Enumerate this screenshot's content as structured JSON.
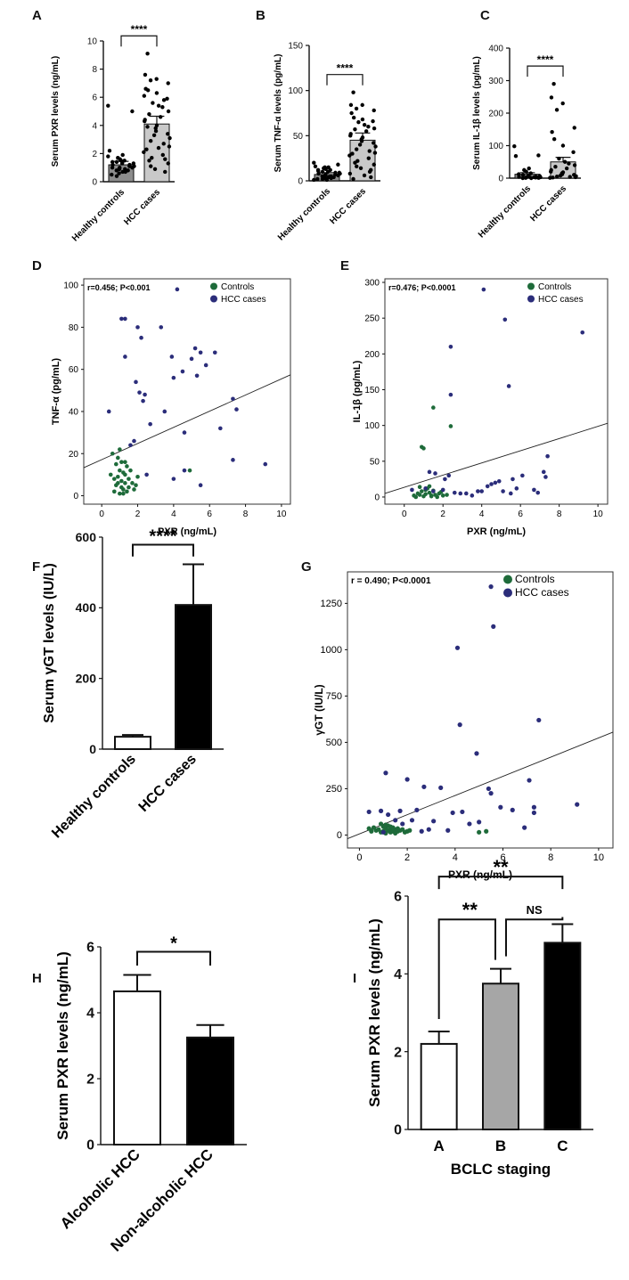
{
  "colors": {
    "control": "#1e6b3a",
    "hcc": "#2b2d7a",
    "black": "#111111",
    "grey_bar_light": "#c9c9c9",
    "grey_bar_dark": "#8c8c8c",
    "white_bar": "#ffffff",
    "black_bar": "#000000",
    "grey_b": "#a6a6a6"
  },
  "chart_data": [
    {
      "id": "A",
      "type": "bar",
      "panel_label": "A",
      "categories": [
        "Healthy controls",
        "HCC cases"
      ],
      "values": [
        1.2,
        4.1
      ],
      "errors": [
        0.25,
        0.55
      ],
      "ylabel": "Serum PXR levels (ng/mL)",
      "ylim": [
        0,
        10
      ],
      "yticks": [
        "0",
        "2",
        "4",
        "6",
        "8",
        "10"
      ],
      "significance": "****",
      "points": [
        [
          5.4,
          5.0,
          2.2,
          1.9,
          1.7,
          1.6,
          1.5,
          1.4,
          1.4,
          1.3,
          1.3,
          1.2,
          1.2,
          1.1,
          1.1,
          1.0,
          1.0,
          0.9,
          0.9,
          0.8,
          0.8,
          0.7,
          0.7,
          0.6,
          0.5,
          0.4,
          1.5,
          1.8,
          1.0,
          0.9
        ],
        [
          9.1,
          7.6,
          7.3,
          7.2,
          7.0,
          6.6,
          6.5,
          6.3,
          5.9,
          5.6,
          5.4,
          5.3,
          5.0,
          4.8,
          4.6,
          4.4,
          4.3,
          4.0,
          3.8,
          3.6,
          3.4,
          3.3,
          3.1,
          2.9,
          2.7,
          2.5,
          2.3,
          2.1,
          1.9,
          1.7,
          1.5,
          1.3,
          1.1,
          0.9,
          0.7,
          5.8,
          6.1,
          2.4,
          1.6,
          3.9
        ]
      ]
    },
    {
      "id": "B",
      "type": "bar",
      "panel_label": "B",
      "categories": [
        "Healthy controls",
        "HCC cases"
      ],
      "values": [
        7,
        45
      ],
      "errors": [
        2,
        8
      ],
      "ylabel": "Serum TNF-α levels (pg/mL)",
      "ylim": [
        0,
        150
      ],
      "yticks": [
        "0",
        "50",
        "100",
        "150"
      ],
      "significance": "****",
      "points": [
        [
          20,
          18,
          16,
          15,
          14,
          13,
          12,
          11,
          10,
          10,
          9,
          9,
          8,
          8,
          7,
          7,
          6,
          6,
          5,
          5,
          4,
          4,
          3,
          3,
          2,
          2,
          1,
          1,
          12,
          15
        ],
        [
          98,
          84,
          84,
          80,
          78,
          75,
          70,
          68,
          66,
          65,
          62,
          60,
          58,
          57,
          55,
          52,
          50,
          48,
          46,
          44,
          42,
          40,
          38,
          35,
          33,
          31,
          30,
          28,
          25,
          22,
          20,
          18,
          16,
          14,
          12,
          10,
          8,
          6,
          4,
          2
        ]
      ]
    },
    {
      "id": "C",
      "type": "bar",
      "panel_label": "C",
      "categories": [
        "Healthy controls",
        "HCC cases"
      ],
      "values": [
        12,
        50
      ],
      "errors": [
        5,
        14
      ],
      "ylabel": "Serum IL-1β levels (pg/mL)",
      "ylim": [
        0,
        400
      ],
      "yticks": [
        "0",
        "100",
        "200",
        "300",
        "400"
      ],
      "significance": "****",
      "points": [
        [
          98,
          70,
          68,
          30,
          25,
          20,
          15,
          12,
          10,
          8,
          6,
          5,
          4,
          3,
          2,
          2,
          1,
          1,
          0,
          0,
          3,
          5
        ],
        [
          290,
          248,
          230,
          210,
          155,
          142,
          120,
          100,
          80,
          60,
          50,
          45,
          40,
          35,
          30,
          25,
          20,
          18,
          15,
          12,
          10,
          8,
          6,
          5,
          4,
          3,
          2,
          1
        ]
      ]
    },
    {
      "id": "D",
      "type": "scatter",
      "panel_label": "D",
      "annotation": "r=0.456; P<0.001",
      "xlabel": "PXR (ng/mL)",
      "ylabel": "TNF-α (pg/mL)",
      "xlim": [
        -1,
        10.5
      ],
      "ylim": [
        -4,
        103
      ],
      "xticks": [
        "0",
        "2",
        "4",
        "6",
        "8",
        "10"
      ],
      "yticks": [
        "0",
        "20",
        "40",
        "60",
        "80",
        "100"
      ],
      "legend": [
        "Controls",
        "HCC cases"
      ],
      "regression": [
        [
          -1,
          13.3
        ],
        [
          10.5,
          57.4
        ]
      ],
      "series": [
        {
          "name": "Controls",
          "x": [
            0.6,
            0.7,
            0.8,
            0.8,
            0.9,
            0.9,
            1.0,
            1.0,
            1.1,
            1.1,
            1.1,
            1.2,
            1.2,
            1.3,
            1.3,
            1.4,
            1.4,
            1.5,
            1.5,
            1.6,
            1.7,
            1.8,
            0.5,
            0.7,
            1.0,
            1.2,
            1.9,
            2.0,
            1.3,
            0.9,
            4.9
          ],
          "y": [
            20,
            2,
            5,
            15,
            9,
            18,
            1,
            12,
            4,
            7,
            16,
            3,
            11,
            6,
            10,
            2,
            14,
            8,
            4,
            12,
            6,
            3,
            10,
            8,
            22,
            1,
            5,
            9,
            16,
            6,
            12
          ]
        },
        {
          "name": "HCC cases",
          "x": [
            4.2,
            1.1,
            1.3,
            2.0,
            3.3,
            2.2,
            5.2,
            5.5,
            3.9,
            5.0,
            5.8,
            6.3,
            4.5,
            5.3,
            4.0,
            1.9,
            2.1,
            2.4,
            1.3,
            3.5,
            6.6,
            4.6,
            7.3,
            7.5,
            9.1,
            7.3,
            5.5,
            2.5,
            0.4,
            4.6,
            1.6,
            2.3,
            4.0,
            2.7,
            1.8
          ],
          "y": [
            98,
            84,
            84,
            80,
            80,
            75,
            70,
            68,
            66,
            65,
            62,
            68,
            59,
            57,
            56,
            54,
            49,
            48,
            66,
            40,
            32,
            30,
            46,
            41,
            15,
            17,
            5,
            10,
            40,
            12,
            24,
            45,
            8,
            34,
            26
          ]
        }
      ]
    },
    {
      "id": "E",
      "type": "scatter",
      "panel_label": "E",
      "annotation": "r=0.476; P<0.0001",
      "xlabel": "PXR (ng/mL)",
      "ylabel": "IL-1β (pg/mL)",
      "xlim": [
        -1,
        10.5
      ],
      "ylim": [
        -10,
        305
      ],
      "xticks": [
        "0",
        "2",
        "4",
        "6",
        "8",
        "10"
      ],
      "yticks": [
        "0",
        "50",
        "100",
        "150",
        "200",
        "250",
        "300"
      ],
      "legend": [
        "Controls",
        "HCC cases"
      ],
      "regression": [
        [
          -1,
          5
        ],
        [
          10.5,
          103
        ]
      ],
      "series": [
        {
          "name": "Controls",
          "x": [
            0.9,
            1.0,
            1.5,
            2.4,
            1.3,
            0.5,
            0.6,
            0.7,
            0.8,
            0.9,
            1.0,
            1.1,
            1.2,
            1.3,
            1.4,
            1.5,
            1.6,
            1.7,
            1.8,
            2.0,
            0.8,
            1.1,
            1.4,
            1.9,
            2.2
          ],
          "y": [
            70,
            68,
            125,
            99,
            15,
            2,
            0,
            5,
            3,
            8,
            1,
            4,
            12,
            6,
            2,
            9,
            3,
            0,
            5,
            2,
            14,
            10,
            1,
            7,
            3
          ]
        },
        {
          "name": "HCC cases",
          "x": [
            4.1,
            5.2,
            9.2,
            2.4,
            2.4,
            5.4,
            7.4,
            1.3,
            1.6,
            2.1,
            2.6,
            3.2,
            3.8,
            4.3,
            4.7,
            5.1,
            5.6,
            6.1,
            6.7,
            7.2,
            7.3,
            6.9,
            5.8,
            4.9,
            4.0,
            3.5,
            2.9,
            2.0,
            1.1,
            0.4,
            5.5,
            4.5,
            2.3,
            1.5
          ],
          "y": [
            290,
            248,
            230,
            210,
            143,
            155,
            57,
            35,
            33,
            25,
            6,
            5,
            8,
            15,
            20,
            8,
            25,
            30,
            10,
            35,
            28,
            6,
            12,
            22,
            8,
            2,
            5,
            10,
            12,
            10,
            5,
            18,
            30,
            8
          ]
        }
      ]
    },
    {
      "id": "F",
      "type": "bar",
      "panel_label": "F",
      "categories": [
        "Healthy controls",
        "HCC cases"
      ],
      "values": [
        35,
        408
      ],
      "errors": [
        5,
        115
      ],
      "ylabel": "Serum γGT levels (IU/L)",
      "ylim": [
        0,
        600
      ],
      "yticks": [
        "0",
        "200",
        "400",
        "600"
      ],
      "significance": "****"
    },
    {
      "id": "G",
      "type": "scatter",
      "panel_label": "G",
      "annotation": "r = 0.490; P<0.0001",
      "xlabel": "PXR (ng/mL)",
      "ylabel": "γGT (IU/L)",
      "xlim": [
        -0.5,
        10.6
      ],
      "ylim": [
        -70,
        1420
      ],
      "xticks": [
        "0",
        "2",
        "4",
        "6",
        "8",
        "10"
      ],
      "yticks": [
        "0",
        "250",
        "500",
        "750",
        "1000",
        "1250"
      ],
      "legend": [
        "Controls",
        "HCC cases"
      ],
      "regression": [
        [
          -0.5,
          -20
        ],
        [
          10.6,
          555
        ]
      ],
      "series": [
        {
          "name": "Controls",
          "x": [
            0.4,
            0.5,
            0.6,
            0.7,
            0.8,
            0.9,
            1.0,
            1.0,
            1.1,
            1.1,
            1.2,
            1.2,
            1.3,
            1.3,
            1.4,
            1.4,
            1.5,
            1.5,
            1.6,
            1.6,
            1.7,
            1.8,
            1.9,
            2.0,
            2.1,
            0.9,
            1.1,
            1.3,
            5.0,
            5.3
          ],
          "y": [
            35,
            20,
            40,
            25,
            30,
            15,
            45,
            20,
            35,
            10,
            50,
            25,
            30,
            15,
            40,
            20,
            30,
            10,
            35,
            20,
            25,
            30,
            15,
            20,
            25,
            60,
            55,
            45,
            15,
            20
          ]
        },
        {
          "name": "HCC cases",
          "x": [
            5.5,
            5.6,
            4.1,
            7.5,
            4.2,
            1.1,
            2.0,
            4.9,
            2.7,
            5.4,
            3.4,
            1.7,
            2.4,
            5.5,
            7.1,
            7.3,
            9.1,
            4.3,
            6.4,
            5.9,
            5.0,
            3.9,
            3.1,
            2.2,
            1.5,
            0.9,
            0.4,
            1.2,
            3.7,
            4.6,
            6.9,
            7.3,
            2.9,
            1.8,
            1.0,
            2.6
          ],
          "y": [
            1340,
            1125,
            1010,
            620,
            595,
            335,
            300,
            440,
            260,
            250,
            255,
            130,
            135,
            225,
            295,
            150,
            165,
            125,
            135,
            150,
            70,
            120,
            75,
            80,
            80,
            130,
            125,
            110,
            25,
            60,
            40,
            120,
            30,
            60,
            15,
            20
          ]
        }
      ]
    },
    {
      "id": "H",
      "type": "bar",
      "panel_label": "H",
      "categories": [
        "Alcoholic HCC",
        "Non-alcoholic HCC"
      ],
      "values": [
        4.65,
        3.25
      ],
      "errors": [
        0.5,
        0.38
      ],
      "ylabel": "Serum PXR levels (ng/mL)",
      "ylim": [
        0,
        6
      ],
      "yticks": [
        "0",
        "2",
        "4",
        "6"
      ],
      "significance": "*"
    },
    {
      "id": "I",
      "type": "bar",
      "panel_label": "I",
      "categories": [
        "A",
        "B",
        "C"
      ],
      "values": [
        2.2,
        3.75,
        4.8
      ],
      "errors": [
        0.32,
        0.38,
        0.48
      ],
      "ylabel": "Serum PXR levels (ng/mL)",
      "xlabel": "BCLC staging",
      "ylim": [
        0,
        6
      ],
      "yticks": [
        "0",
        "2",
        "4",
        "6"
      ],
      "significance_pairs": [
        {
          "from": 0,
          "to": 2,
          "label": "**"
        },
        {
          "from": 0,
          "to": 1,
          "label": "**"
        },
        {
          "from": 1,
          "to": 2,
          "label": "NS"
        }
      ]
    }
  ]
}
